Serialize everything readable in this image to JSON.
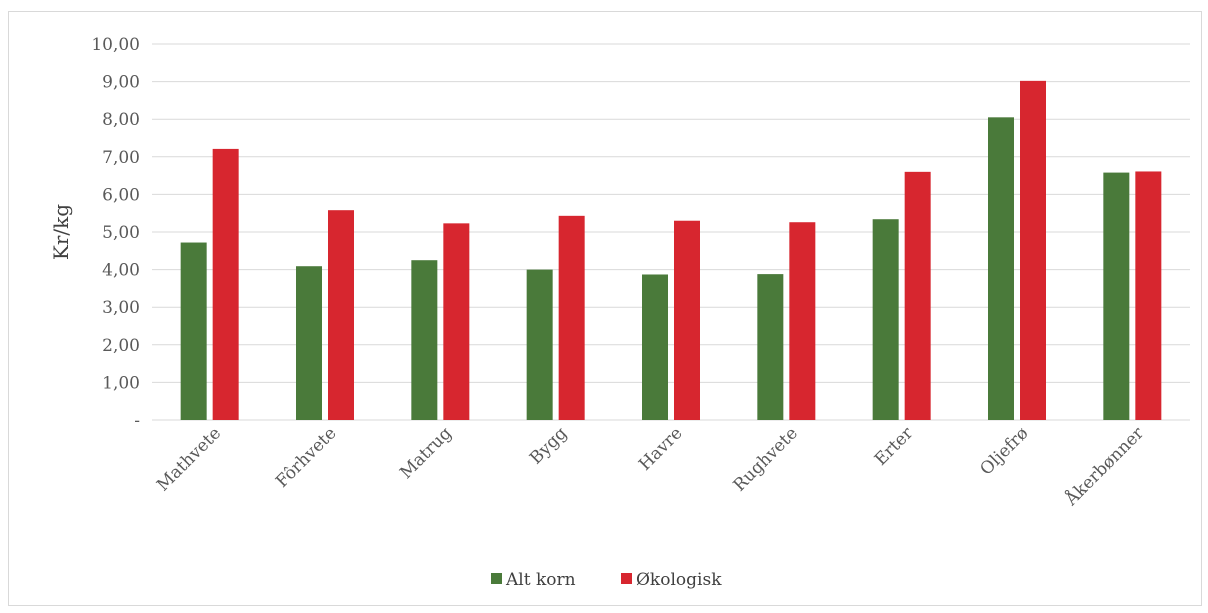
{
  "chart_data": {
    "type": "bar",
    "title": "",
    "xlabel": "",
    "ylabel": "Kr/kg",
    "ylim": [
      0,
      10
    ],
    "y_ticks": [
      "-",
      "1,00",
      "2,00",
      "3,00",
      "4,00",
      "5,00",
      "6,00",
      "7,00",
      "8,00",
      "9,00",
      "10,00"
    ],
    "grid": true,
    "legend_position": "bottom",
    "categories": [
      "Mathvete",
      "Fôrhvete",
      "Matrug",
      "Bygg",
      "Havre",
      "Rughvete",
      "Erter",
      "Oljefrø",
      "Åkerbønner"
    ],
    "series": [
      {
        "name": "Alt korn",
        "color": "#4a7a3a",
        "values": [
          4.72,
          4.09,
          4.25,
          4.0,
          3.87,
          3.88,
          5.34,
          8.05,
          6.58
        ]
      },
      {
        "name": "Økologisk",
        "color": "#d7262f",
        "values": [
          7.21,
          5.58,
          5.23,
          5.43,
          5.3,
          5.26,
          6.6,
          9.02,
          6.61
        ]
      }
    ]
  }
}
